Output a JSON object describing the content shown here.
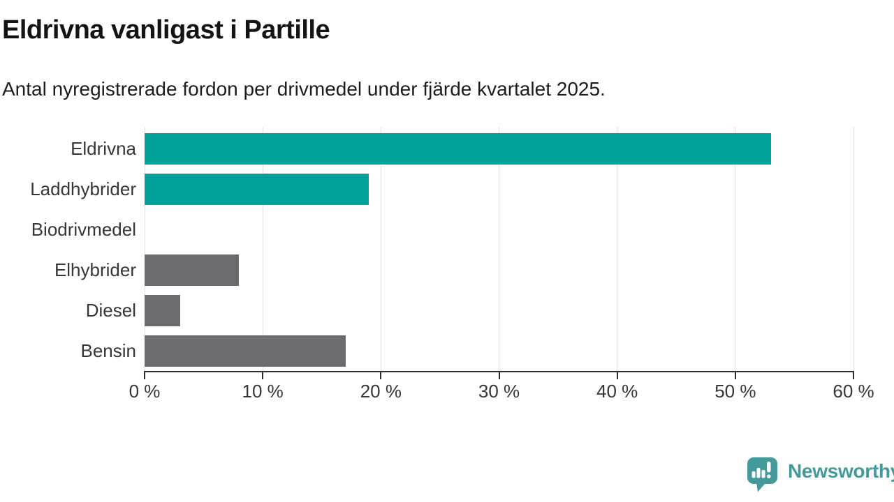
{
  "chart_data": {
    "type": "bar",
    "orientation": "horizontal",
    "title": "Eldrivna vanligast i Partille",
    "subtitle": "Antal nyregistrerade fordon per drivmedel under fjärde kvartalet 2025.",
    "categories": [
      "Eldrivna",
      "Laddhybrider",
      "Biodrivmedel",
      "Elhybrider",
      "Diesel",
      "Bensin"
    ],
    "values": [
      53,
      19,
      0,
      8,
      3,
      17
    ],
    "unit": "%",
    "xlim": [
      0,
      60
    ],
    "x_ticks": [
      0,
      10,
      20,
      30,
      40,
      50,
      60
    ],
    "x_tick_labels": [
      "0 %",
      "10 %",
      "20 %",
      "30 %",
      "40 %",
      "50 %",
      "60 %"
    ],
    "grid": true,
    "legend": "none",
    "bar_colors": [
      "#00a29a",
      "#00a29a",
      "#00a29a",
      "#6b6b70",
      "#6b6b70",
      "#6b6b70"
    ]
  },
  "colors": {
    "highlight_teal": "#00a29a",
    "neutral_gray": "#6b6b70",
    "gridline": "#e1e1e1",
    "axis": "#2e2e2e",
    "brand_teal": "#449a9b"
  },
  "footer": {
    "brand": "Newsworthy"
  }
}
